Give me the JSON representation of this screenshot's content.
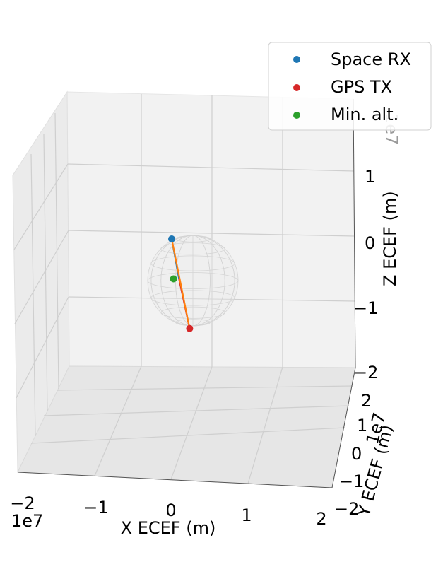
{
  "chart_data": {
    "type": "scatter",
    "projection": "3d",
    "xlabel": "X ECEF (m)",
    "ylabel": "Y ECEF (m)",
    "zlabel": "Z ECEF (m)",
    "x_offset": "1e7",
    "y_offset": "1e7",
    "z_offset": "1e7",
    "x_ticks": [
      "−2",
      "−1",
      "0",
      "1",
      "2"
    ],
    "y_ticks": [
      "−2",
      "−1",
      "0",
      "1",
      "2"
    ],
    "z_ticks": [
      "−2",
      "−1",
      "0",
      "1"
    ],
    "xlim": [
      -2,
      2
    ],
    "ylim": [
      -2,
      2
    ],
    "zlim": [
      -2,
      2
    ],
    "grid": true,
    "legend_position": "top-right",
    "legend": [
      {
        "label": "Space RX",
        "color": "#1f77b4"
      },
      {
        "label": "GPS TX",
        "color": "#d62728"
      },
      {
        "label": "Min. alt.",
        "color": "#2ca02c"
      }
    ],
    "points": [
      {
        "name": "Space RX",
        "x": 0.0,
        "y": 0.0,
        "z": 0.0,
        "color": "#1f77b4"
      },
      {
        "name": "GPS TX",
        "x": 0.4,
        "y": -1.5,
        "z": -2.0,
        "color": "#d62728"
      },
      {
        "name": "Min. alt.",
        "x": 0.1,
        "y": 0.0,
        "z": -0.6,
        "color": "#2ca02c"
      }
    ],
    "lines": [
      {
        "from": "Space RX",
        "to": "Earth center",
        "color": "#1f77b4"
      },
      {
        "from": "Earth center",
        "to": "GPS TX",
        "color": "#d62728"
      },
      {
        "from": "Space RX",
        "to": "GPS TX",
        "color": "#ff7f0e"
      }
    ],
    "earth_sphere": true
  }
}
